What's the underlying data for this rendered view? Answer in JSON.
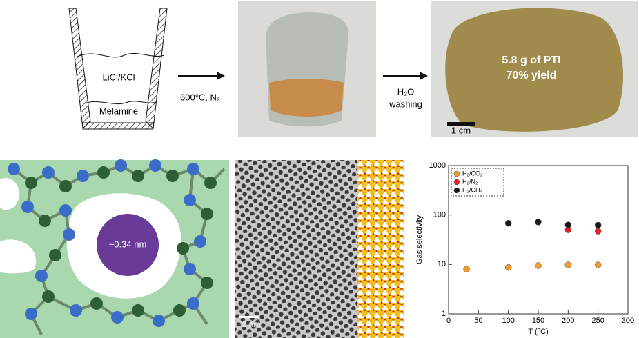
{
  "scheme": {
    "salt_label": "LiCl/KCl",
    "precursor_label": "Melamine",
    "step1_condition": "600°C, N₂",
    "step2_line1": "H₂O",
    "step2_line2": "washing",
    "product_mass": "5.8 g of PTI",
    "product_yield": "70% yield",
    "photo_scale": "1 cm"
  },
  "structure": {
    "pore_label": "~0.34 nm"
  },
  "tem": {
    "scale_label": "2 nm"
  },
  "chart_data": {
    "type": "scatter",
    "x_label": "T (°C)",
    "y_label": "Gas selectivity",
    "series": [
      {
        "name": "H₂/CO₂",
        "color": "#f39a2e",
        "x": [
          30,
          100,
          150,
          200,
          250
        ],
        "values": [
          8,
          8.7,
          9.5,
          9.8,
          9.8
        ]
      },
      {
        "name": "H₂/N₂",
        "color": "#e0202a",
        "x": [
          200,
          250
        ],
        "values": [
          50,
          47
        ]
      },
      {
        "name": "H₂/CH₄",
        "color": "#1a1a1a",
        "x": [
          100,
          150,
          200,
          250
        ],
        "values": [
          68,
          72,
          63,
          62
        ]
      }
    ],
    "xlim": [
      0,
      300
    ],
    "xticks": [
      0,
      50,
      100,
      150,
      200,
      250,
      300
    ],
    "ylim": [
      1,
      1000
    ],
    "yticks": [
      1,
      10,
      100,
      1000
    ],
    "log_y": true,
    "legend": "upper left"
  }
}
